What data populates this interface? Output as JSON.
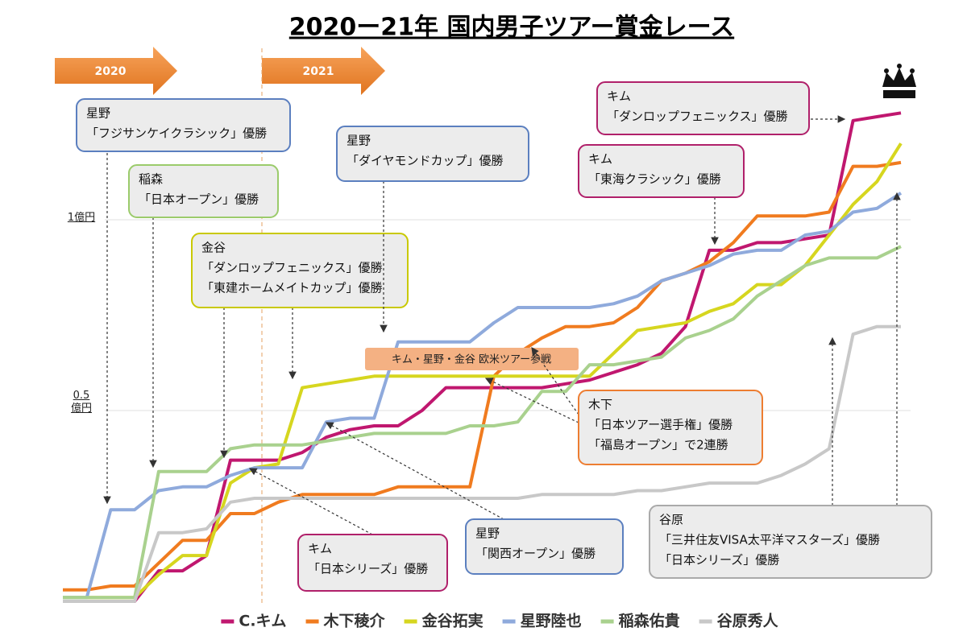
{
  "chart_data": {
    "type": "line",
    "title": "2020ー21年 国内男子ツアー賞金レース",
    "seasons": [
      "2020",
      "2021"
    ],
    "categories": [
      null,
      null,
      null,
      null,
      null,
      null,
      null,
      null,
      null,
      null,
      null,
      null,
      null,
      null,
      null,
      null,
      null,
      null,
      null,
      null,
      null,
      null,
      null,
      null,
      null,
      null,
      null,
      null,
      null,
      null,
      null,
      null,
      null,
      null,
      null,
      null
    ],
    "ylim": [
      0,
      1.4
    ],
    "yticks": [
      {
        "value": 0.5,
        "label": "0.5\n億円"
      },
      {
        "value": 1,
        "label": "1億円"
      }
    ],
    "grid": true,
    "series": [
      {
        "name": "C.キム",
        "color": "#c0176f",
        "values": [
          0,
          0,
          0,
          0,
          0.08,
          0.08,
          0.12,
          0.37,
          0.37,
          0.37,
          0.39,
          0.43,
          0.45,
          0.46,
          0.46,
          0.5,
          0.56,
          0.56,
          0.56,
          0.56,
          0.56,
          0.57,
          0.58,
          0.6,
          0.62,
          0.65,
          0.72,
          0.92,
          0.92,
          0.94,
          0.94,
          0.95,
          0.96,
          1.26,
          1.27,
          1.28
        ]
      },
      {
        "name": "木下稜介",
        "color": "#f07b1f",
        "values": [
          0.03,
          0.03,
          0.04,
          0.04,
          0.1,
          0.16,
          0.16,
          0.23,
          0.23,
          0.26,
          0.28,
          0.28,
          0.28,
          0.28,
          0.3,
          0.3,
          0.3,
          0.3,
          0.59,
          0.65,
          0.69,
          0.72,
          0.72,
          0.73,
          0.77,
          0.84,
          0.86,
          0.89,
          0.94,
          1.01,
          1.01,
          1.01,
          1.02,
          1.14,
          1.14,
          1.15
        ]
      },
      {
        "name": "金谷拓実",
        "color": "#d6d61f",
        "values": [
          0.01,
          0.01,
          0.01,
          0.01,
          0.07,
          0.12,
          0.12,
          0.31,
          0.35,
          0.36,
          0.56,
          0.57,
          0.58,
          0.59,
          0.59,
          0.59,
          0.59,
          0.59,
          0.59,
          0.59,
          0.59,
          0.59,
          0.59,
          0.65,
          0.71,
          0.72,
          0.73,
          0.76,
          0.78,
          0.83,
          0.83,
          0.88,
          0.96,
          1.04,
          1.1,
          1.2
        ]
      },
      {
        "name": "星野陸也",
        "color": "#8faadc",
        "values": [
          0.01,
          0.01,
          0.24,
          0.24,
          0.29,
          0.3,
          0.3,
          0.33,
          0.35,
          0.35,
          0.35,
          0.47,
          0.48,
          0.48,
          0.68,
          0.68,
          0.68,
          0.68,
          0.73,
          0.77,
          0.77,
          0.77,
          0.77,
          0.78,
          0.8,
          0.84,
          0.86,
          0.88,
          0.91,
          0.92,
          0.92,
          0.96,
          0.97,
          1.02,
          1.03,
          1.07
        ]
      },
      {
        "name": "稲森佑貴",
        "color": "#a9d18e",
        "values": [
          0.01,
          0.01,
          0.01,
          0.01,
          0.34,
          0.34,
          0.34,
          0.4,
          0.41,
          0.41,
          0.41,
          0.42,
          0.43,
          0.44,
          0.44,
          0.44,
          0.44,
          0.46,
          0.46,
          0.47,
          0.55,
          0.55,
          0.62,
          0.62,
          0.63,
          0.64,
          0.69,
          0.71,
          0.74,
          0.8,
          0.84,
          0.88,
          0.9,
          0.9,
          0.9,
          0.93
        ]
      },
      {
        "name": "谷原秀人",
        "color": "#c8c8c8",
        "values": [
          0,
          0,
          0,
          0,
          0.18,
          0.18,
          0.19,
          0.26,
          0.27,
          0.27,
          0.27,
          0.27,
          0.27,
          0.27,
          0.27,
          0.27,
          0.27,
          0.27,
          0.27,
          0.27,
          0.28,
          0.28,
          0.28,
          0.28,
          0.29,
          0.29,
          0.3,
          0.31,
          0.31,
          0.31,
          0.33,
          0.36,
          0.4,
          0.7,
          0.72,
          0.72
        ]
      }
    ],
    "banner": "キム・星野・金谷 欧米ツアー参戦",
    "annotations": [
      {
        "lines": [
          "星野",
          "「フジサンケイクラシック」優勝"
        ],
        "color": "#5b7fbf"
      },
      {
        "lines": [
          "稲森",
          "「日本オープン」優勝"
        ],
        "color": "#9bcb6b"
      },
      {
        "lines": [
          "金谷",
          "「ダンロップフェニックス」優勝",
          "「東建ホームメイトカップ」優勝"
        ],
        "color": "#c9c900"
      },
      {
        "lines": [
          "星野",
          "「ダイヤモンドカップ」優勝"
        ],
        "color": "#5b7fbf"
      },
      {
        "lines": [
          "キム",
          "「ダンロップフェニックス」優勝"
        ],
        "color": "#b0206a"
      },
      {
        "lines": [
          "キム",
          "「東海クラシック」優勝"
        ],
        "color": "#b0206a"
      },
      {
        "lines": [
          "木下",
          "「日本ツアー選手権」優勝",
          "「福島オープン」で2連勝"
        ],
        "color": "#ed7d31"
      },
      {
        "lines": [
          "キム",
          "「日本シリーズ」優勝"
        ],
        "color": "#b0206a"
      },
      {
        "lines": [
          "星野",
          "「関西オープン」優勝"
        ],
        "color": "#5b7fbf"
      },
      {
        "lines": [
          "谷原",
          "「三井住友VISA太平洋マスターズ」優勝",
          "「日本シリーズ」優勝"
        ],
        "color": "#aaaaaa"
      }
    ]
  }
}
